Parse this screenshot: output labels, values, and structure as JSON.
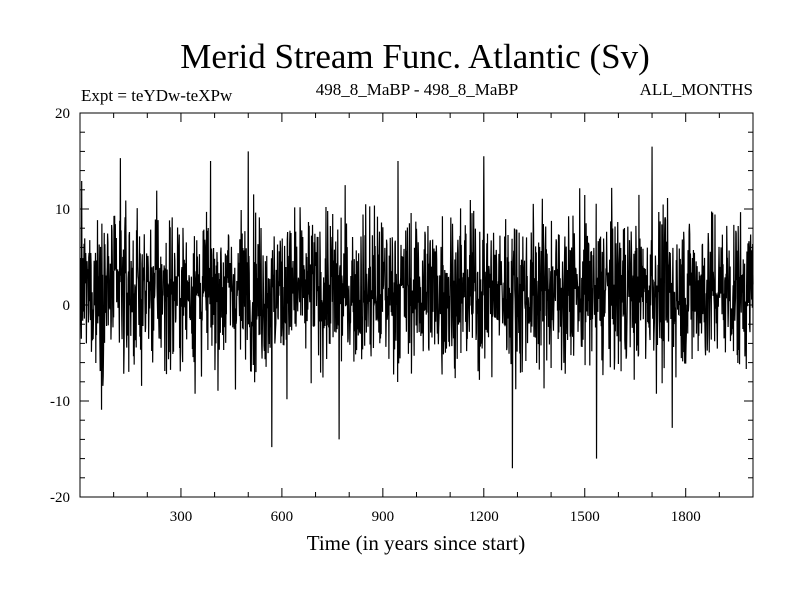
{
  "chart_data": {
    "type": "line",
    "title": "Merid Stream Func. Atlantic (Sv)",
    "header_left": "Expt = teYDw-teXPw",
    "header_center": "498_8_MaBP - 498_8_MaBP",
    "header_right": "ALL_MONTHS",
    "xlabel": "Time (in years since start)",
    "ylabel": "",
    "xlim": [
      0,
      2000
    ],
    "ylim": [
      -20,
      20
    ],
    "x_ticks": [
      300,
      600,
      900,
      1200,
      1500,
      1800
    ],
    "y_ticks": [
      20,
      10,
      0,
      -10,
      -20
    ],
    "grid": false,
    "series": [
      {
        "name": "",
        "color": "#000000",
        "x_start": 1,
        "x_step": 1,
        "n_points": 2000,
        "mean": 1.5,
        "std": 4.0,
        "ymax": 16.5,
        "ymin": -17.0,
        "notable_extremes": [
          {
            "x": 120,
            "y": 15.3
          },
          {
            "x": 500,
            "y": 16.0
          },
          {
            "x": 570,
            "y": -14.8
          },
          {
            "x": 770,
            "y": -14.0
          },
          {
            "x": 945,
            "y": 15.0
          },
          {
            "x": 1200,
            "y": 15.5
          },
          {
            "x": 1285,
            "y": -17.0
          },
          {
            "x": 1535,
            "y": -16.0
          },
          {
            "x": 1700,
            "y": 16.5
          },
          {
            "x": 1760,
            "y": -12.8
          }
        ]
      }
    ]
  }
}
